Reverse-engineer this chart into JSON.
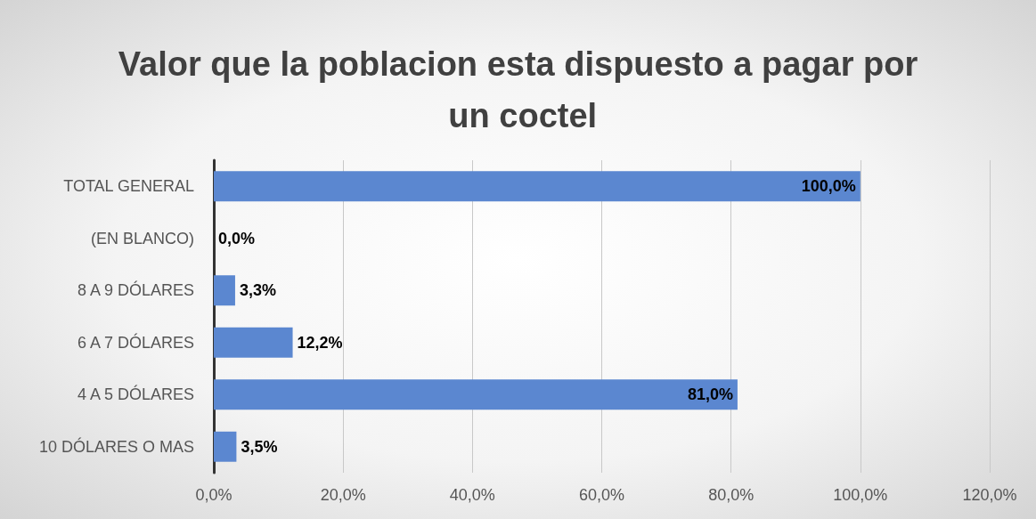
{
  "chart_data": {
    "type": "bar",
    "orientation": "horizontal",
    "title": "Valor que la poblacion esta dispuesto a pagar por un coctel",
    "categories": [
      "TOTAL GENERAL",
      "(EN BLANCO)",
      "8 A 9 DÓLARES",
      "6 A 7 DÓLARES",
      "4 A 5 DÓLARES",
      "10 DÓLARES O MAS"
    ],
    "values": [
      100,
      0,
      3.3,
      12.2,
      81.0,
      3.5
    ],
    "value_labels": [
      "100,0%",
      "0,0%",
      "3,3%",
      "12,2%",
      "81,0%",
      "3,5%"
    ],
    "color": "#5b87d0",
    "xlim": [
      0,
      120
    ],
    "xticks": [
      {
        "value": 0,
        "label": "0,0%"
      },
      {
        "value": 20,
        "label": "20,0%"
      },
      {
        "value": 40,
        "label": "40,0%"
      },
      {
        "value": 60,
        "label": "60,0%"
      },
      {
        "value": 80,
        "label": "80,0%"
      },
      {
        "value": 100,
        "label": "100,0%"
      },
      {
        "value": 120,
        "label": "120,0%"
      }
    ],
    "grid": "x"
  }
}
